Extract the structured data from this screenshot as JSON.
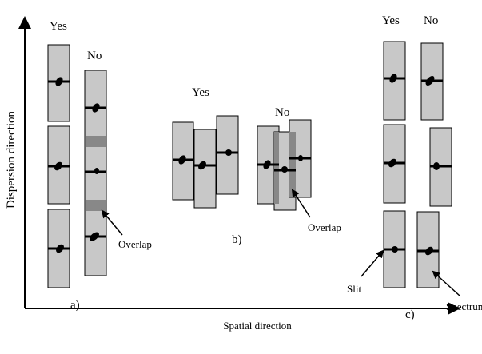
{
  "axes": {
    "y_label": "Dispersion direction",
    "x_label": "Spatial direction"
  },
  "panels": [
    {
      "label": "a)",
      "yes": "Yes",
      "no": "No",
      "annotation": "Overlap"
    },
    {
      "label": "b)",
      "yes": "Yes",
      "no": "No",
      "annotation": "Overlap"
    },
    {
      "label": "c)",
      "yes": "Yes",
      "no": "No",
      "annotations": [
        "Slit",
        "Spectrum"
      ]
    }
  ]
}
